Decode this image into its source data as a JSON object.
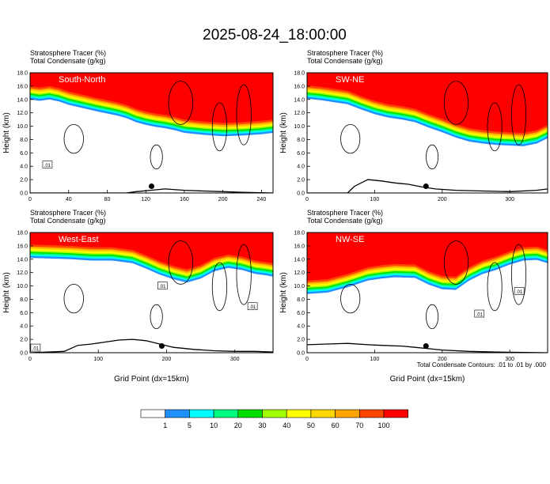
{
  "title": "2025-08-24_18:00:00",
  "chart_data": [
    {
      "type": "heatmap",
      "header_line1": "Stratosphere Tracer   (%)",
      "header_line2": "Total Condensate   (g/kg)",
      "cross_section_label": "South-North",
      "ylabel": "Height (km)",
      "xlabel": "",
      "xlim": [
        0,
        252
      ],
      "ylim": [
        0,
        18
      ],
      "x_ticks": [
        0,
        40,
        80,
        120,
        160,
        200,
        240
      ],
      "y_ticks": [
        0,
        2,
        4,
        6,
        8,
        10,
        12,
        14,
        16,
        18
      ],
      "tropopause_km": [
        [
          0,
          15.2
        ],
        [
          10,
          15.0
        ],
        [
          20,
          15.2
        ],
        [
          30,
          14.9
        ],
        [
          40,
          14.4
        ],
        [
          55,
          13.9
        ],
        [
          70,
          13.4
        ],
        [
          90,
          12.8
        ],
        [
          100,
          12.4
        ],
        [
          110,
          11.8
        ],
        [
          120,
          11.4
        ],
        [
          130,
          11.1
        ],
        [
          140,
          10.9
        ],
        [
          150,
          10.6
        ],
        [
          160,
          10.2
        ],
        [
          180,
          9.9
        ],
        [
          200,
          9.7
        ],
        [
          220,
          9.8
        ],
        [
          240,
          10.0
        ],
        [
          252,
          10.2
        ]
      ],
      "terrain_km": [
        [
          0,
          0
        ],
        [
          100,
          0
        ],
        [
          110,
          0.2
        ],
        [
          125,
          0.4
        ],
        [
          140,
          0.6
        ],
        [
          160,
          0.4
        ],
        [
          180,
          0.3
        ],
        [
          200,
          0.2
        ],
        [
          220,
          0.1
        ],
        [
          252,
          0
        ]
      ],
      "marker_x": 126,
      "contour_label": ".01",
      "contour_label_pos": [
        18,
        4.2
      ]
    },
    {
      "type": "heatmap",
      "header_line1": "Stratosphere Tracer   (%)",
      "header_line2": "Total Condensate   (g/kg)",
      "cross_section_label": "SW-NE",
      "ylabel": "Height (km)",
      "xlabel": "",
      "xlim": [
        0,
        356
      ],
      "ylim": [
        0,
        18
      ],
      "x_ticks": [
        0,
        100,
        200,
        300
      ],
      "y_ticks": [
        0,
        2,
        4,
        6,
        8,
        10,
        12,
        14,
        16,
        18
      ],
      "tropopause_km": [
        [
          0,
          15.3
        ],
        [
          20,
          15.1
        ],
        [
          40,
          14.8
        ],
        [
          60,
          14.5
        ],
        [
          80,
          13.7
        ],
        [
          100,
          13.0
        ],
        [
          120,
          12.5
        ],
        [
          140,
          12.2
        ],
        [
          160,
          11.8
        ],
        [
          180,
          11.0
        ],
        [
          200,
          10.3
        ],
        [
          220,
          9.5
        ],
        [
          240,
          8.9
        ],
        [
          260,
          8.6
        ],
        [
          280,
          8.4
        ],
        [
          300,
          8.3
        ],
        [
          320,
          8.2
        ],
        [
          340,
          8.6
        ],
        [
          356,
          9.4
        ]
      ],
      "terrain_km": [
        [
          0,
          0
        ],
        [
          60,
          0
        ],
        [
          70,
          1.0
        ],
        [
          90,
          2.0
        ],
        [
          110,
          1.8
        ],
        [
          130,
          1.5
        ],
        [
          150,
          1.3
        ],
        [
          170,
          0.9
        ],
        [
          190,
          0.6
        ],
        [
          220,
          0.4
        ],
        [
          260,
          0.3
        ],
        [
          300,
          0.2
        ],
        [
          340,
          0.4
        ],
        [
          356,
          0.6
        ]
      ],
      "marker_x": 176,
      "contour_label": "",
      "contour_label_pos": []
    },
    {
      "type": "heatmap",
      "header_line1": "Stratosphere Tracer   (%)",
      "header_line2": "Total Condensate   (g/kg)",
      "cross_section_label": "West-East",
      "ylabel": "Height (km)",
      "xlabel": "Grid Point (dx=15km)",
      "xlim": [
        0,
        356
      ],
      "ylim": [
        0,
        18
      ],
      "x_ticks": [
        0,
        100,
        200,
        300
      ],
      "y_ticks": [
        0,
        2,
        4,
        6,
        8,
        10,
        12,
        14,
        16,
        18
      ],
      "tropopause_km": [
        [
          0,
          15.4
        ],
        [
          30,
          15.3
        ],
        [
          60,
          15.2
        ],
        [
          90,
          15.0
        ],
        [
          120,
          15.0
        ],
        [
          150,
          14.6
        ],
        [
          170,
          13.8
        ],
        [
          190,
          12.9
        ],
        [
          210,
          12.2
        ],
        [
          230,
          11.7
        ],
        [
          250,
          12.3
        ],
        [
          270,
          13.4
        ],
        [
          290,
          13.9
        ],
        [
          310,
          13.6
        ],
        [
          330,
          13.0
        ],
        [
          345,
          12.8
        ],
        [
          356,
          12.6
        ]
      ],
      "terrain_km": [
        [
          0,
          0
        ],
        [
          50,
          0.2
        ],
        [
          70,
          1.1
        ],
        [
          90,
          1.3
        ],
        [
          110,
          1.6
        ],
        [
          130,
          1.9
        ],
        [
          150,
          2.0
        ],
        [
          170,
          1.8
        ],
        [
          190,
          1.3
        ],
        [
          210,
          0.8
        ],
        [
          240,
          0.5
        ],
        [
          270,
          0.3
        ],
        [
          300,
          0.2
        ],
        [
          330,
          0.2
        ],
        [
          356,
          0.1
        ]
      ],
      "marker_x": 193,
      "contour_label": ".01",
      "contour_label_pos": [
        [
          194,
          10.0
        ],
        [
          326,
          6.9
        ],
        [
          8,
          0.7
        ]
      ]
    },
    {
      "type": "heatmap",
      "header_line1": "Stratosphere Tracer   (%)",
      "header_line2": "Total Condensate   (g/kg)",
      "cross_section_label": "NW-SE",
      "ylabel": "Height (km)",
      "xlabel": "Grid Point (dx=15km)",
      "xlim": [
        0,
        356
      ],
      "ylim": [
        0,
        18
      ],
      "x_ticks": [
        0,
        100,
        200,
        300
      ],
      "y_ticks": [
        0,
        2,
        4,
        6,
        8,
        10,
        12,
        14,
        16,
        18
      ],
      "tropopause_km": [
        [
          0,
          10.0
        ],
        [
          30,
          10.2
        ],
        [
          60,
          11.0
        ],
        [
          90,
          12.0
        ],
        [
          110,
          12.3
        ],
        [
          130,
          12.5
        ],
        [
          160,
          12.4
        ],
        [
          180,
          11.4
        ],
        [
          200,
          10.7
        ],
        [
          220,
          10.6
        ],
        [
          240,
          12.0
        ],
        [
          260,
          13.0
        ],
        [
          280,
          13.6
        ],
        [
          300,
          14.4
        ],
        [
          320,
          15.0
        ],
        [
          340,
          15.1
        ],
        [
          356,
          14.6
        ]
      ],
      "terrain_km": [
        [
          0,
          1.2
        ],
        [
          30,
          1.3
        ],
        [
          60,
          1.4
        ],
        [
          90,
          1.2
        ],
        [
          110,
          1.1
        ],
        [
          140,
          1.0
        ],
        [
          160,
          0.8
        ],
        [
          180,
          0.6
        ],
        [
          200,
          0.4
        ],
        [
          240,
          0.2
        ],
        [
          280,
          0.1
        ],
        [
          356,
          0
        ]
      ],
      "marker_x": 176,
      "contour_label": ".01",
      "contour_label_pos": [
        [
          255,
          5.8
        ],
        [
          314,
          9.2
        ]
      ]
    }
  ],
  "legend": {
    "labels": [
      "1",
      "5",
      "10",
      "20",
      "30",
      "40",
      "50",
      "60",
      "70",
      "100"
    ],
    "colors": [
      "#ffffff",
      "#1e90ff",
      "#00ffff",
      "#00ff7f",
      "#00e000",
      "#a0ff00",
      "#ffff00",
      "#ffd700",
      "#ffa500",
      "#ff4500",
      "#ff0000"
    ]
  },
  "footnote": "Total Condensate Contours: .01 to .01 by .000"
}
